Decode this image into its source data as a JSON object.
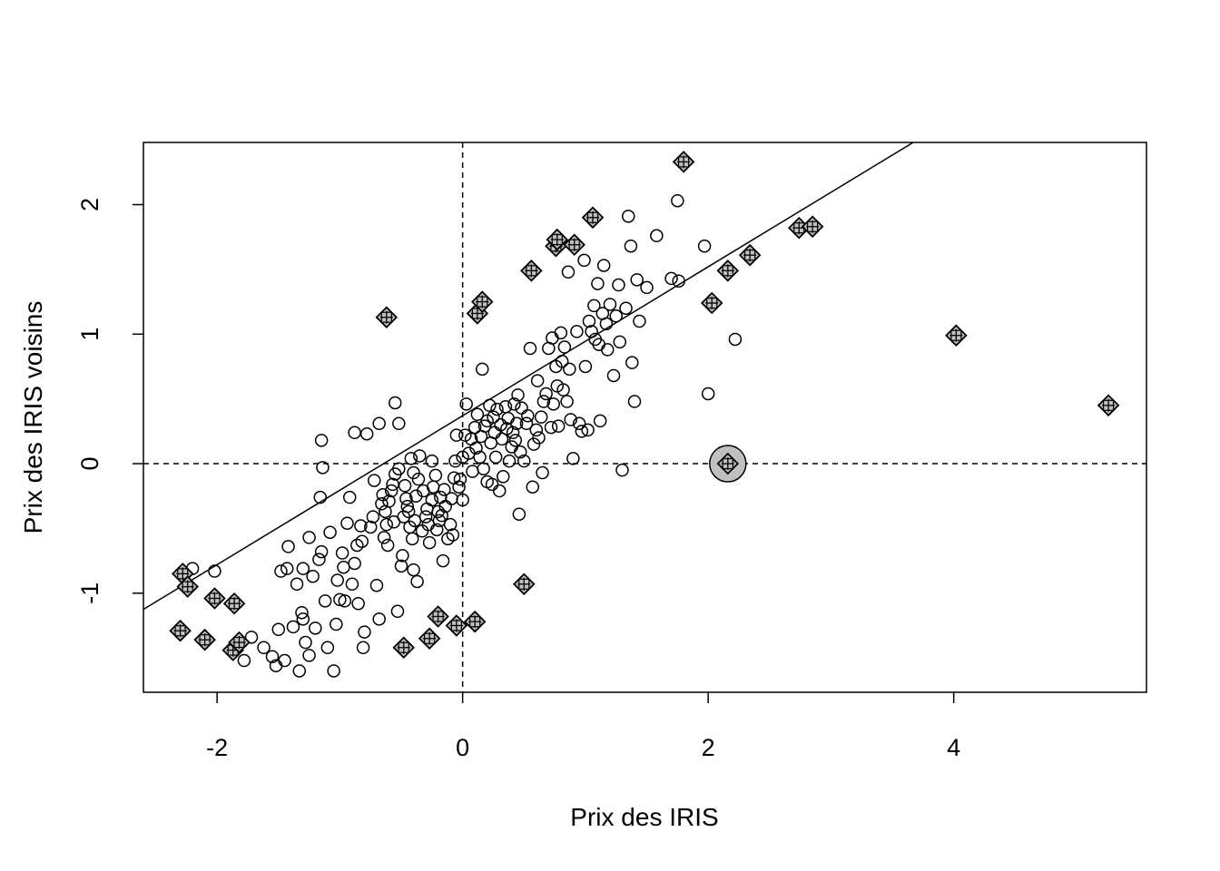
{
  "chart_data": {
    "type": "scatter",
    "title": "",
    "xlabel": "Prix des IRIS",
    "ylabel": "Prix des IRIS voisins",
    "xlim": [
      -2.6,
      5.57
    ],
    "ylim": [
      -1.765,
      2.48
    ],
    "xticks": [
      -2,
      0,
      2,
      4
    ],
    "yticks": [
      -1,
      0,
      1,
      2
    ],
    "xtick_labels": [
      "-2",
      "0",
      "2",
      "4"
    ],
    "ytick_labels": [
      "-1",
      "0",
      "1",
      "2"
    ],
    "grid": false,
    "legend": "none",
    "reference_lines": [
      {
        "type": "vline",
        "x": 0,
        "style": "dashed"
      },
      {
        "type": "hline",
        "y": 0,
        "style": "dashed"
      },
      {
        "type": "regression",
        "intercept": 0.37,
        "slope": 0.575,
        "style": "solid"
      }
    ],
    "colors": {
      "influential_fill": "#c0c0c0",
      "marker_stroke": "#000000"
    },
    "series": [
      {
        "marker": "open-circle",
        "points": [
          [
            -2.2,
            -0.81
          ],
          [
            -2.02,
            -0.83
          ],
          [
            -1.78,
            -1.52
          ],
          [
            -1.72,
            -1.34
          ],
          [
            -1.62,
            -1.42
          ],
          [
            -1.55,
            -1.49
          ],
          [
            -1.52,
            -1.56
          ],
          [
            -1.5,
            -1.28
          ],
          [
            -1.48,
            -0.83
          ],
          [
            -1.45,
            -1.52
          ],
          [
            -1.43,
            -0.81
          ],
          [
            -1.42,
            -0.64
          ],
          [
            -1.38,
            -1.26
          ],
          [
            -1.35,
            -0.93
          ],
          [
            -1.33,
            -1.6
          ],
          [
            -1.31,
            -1.15
          ],
          [
            -1.3,
            -0.81
          ],
          [
            -1.28,
            -1.38
          ],
          [
            -1.25,
            -1.48
          ],
          [
            -1.3,
            -1.2
          ],
          [
            -1.25,
            -0.57
          ],
          [
            -1.22,
            -0.87
          ],
          [
            -1.2,
            -1.27
          ],
          [
            -1.17,
            -0.74
          ],
          [
            -1.12,
            -1.06
          ],
          [
            -1.15,
            0.18
          ],
          [
            -1.14,
            -0.03
          ],
          [
            -1.16,
            -0.26
          ],
          [
            -1.15,
            -0.68
          ],
          [
            -1.1,
            -1.42
          ],
          [
            -1.08,
            -0.53
          ],
          [
            -1.05,
            -1.6
          ],
          [
            -1.03,
            -1.24
          ],
          [
            -1.0,
            -1.05
          ],
          [
            -1.02,
            -0.9
          ],
          [
            -0.98,
            -0.69
          ],
          [
            -0.97,
            -0.8
          ],
          [
            -0.96,
            -1.06
          ],
          [
            -0.94,
            -0.46
          ],
          [
            -0.92,
            -0.26
          ],
          [
            -0.9,
            -0.93
          ],
          [
            -0.88,
            -0.77
          ],
          [
            -0.86,
            -0.63
          ],
          [
            -0.85,
            -1.08
          ],
          [
            -0.88,
            0.24
          ],
          [
            -0.83,
            -0.48
          ],
          [
            -0.82,
            -0.6
          ],
          [
            -0.81,
            -1.42
          ],
          [
            -0.8,
            -1.3
          ],
          [
            -0.78,
            0.23
          ],
          [
            -0.75,
            -0.49
          ],
          [
            -0.73,
            -0.41
          ],
          [
            -0.72,
            -0.13
          ],
          [
            -0.7,
            -0.94
          ],
          [
            -0.68,
            -1.2
          ],
          [
            -0.68,
            0.31
          ],
          [
            -0.66,
            -0.31
          ],
          [
            -0.65,
            -0.24
          ],
          [
            -0.64,
            -0.57
          ],
          [
            -0.63,
            -0.37
          ],
          [
            -0.62,
            -0.47
          ],
          [
            -0.61,
            -0.63
          ],
          [
            -0.6,
            -0.29
          ],
          [
            -0.58,
            -0.21
          ],
          [
            -0.57,
            -0.16
          ],
          [
            -0.56,
            -0.45
          ],
          [
            -0.55,
            -0.08
          ],
          [
            -0.55,
            0.47
          ],
          [
            -0.53,
            -1.14
          ],
          [
            -0.52,
            0.31
          ],
          [
            -0.52,
            -0.04
          ],
          [
            -0.5,
            -0.79
          ],
          [
            -0.49,
            -0.71
          ],
          [
            -0.48,
            -0.41
          ],
          [
            -0.47,
            -0.17
          ],
          [
            -0.46,
            -0.27
          ],
          [
            -0.45,
            -0.33
          ],
          [
            -0.44,
            -0.37
          ],
          [
            -0.43,
            -0.49
          ],
          [
            -0.42,
            0.04
          ],
          [
            -0.41,
            -0.58
          ],
          [
            -0.4,
            -0.82
          ],
          [
            -0.4,
            -0.07
          ],
          [
            -0.39,
            -0.44
          ],
          [
            -0.38,
            -0.25
          ],
          [
            -0.37,
            -0.91
          ],
          [
            -0.36,
            -0.12
          ],
          [
            -0.35,
            0.06
          ],
          [
            -0.33,
            -0.52
          ],
          [
            -0.32,
            -0.21
          ],
          [
            -0.3,
            -0.41
          ],
          [
            -0.29,
            -0.35
          ],
          [
            -0.28,
            -0.47
          ],
          [
            -0.27,
            -0.61
          ],
          [
            -0.25,
            -0.28
          ],
          [
            -0.25,
            0.02
          ],
          [
            -0.24,
            -0.18
          ],
          [
            -0.22,
            -0.09
          ],
          [
            -0.21,
            -0.51
          ],
          [
            -0.2,
            -0.37
          ],
          [
            -0.19,
            -0.44
          ],
          [
            -0.18,
            -0.26
          ],
          [
            -0.17,
            -0.4
          ],
          [
            -0.16,
            -0.75
          ],
          [
            -0.15,
            -0.2
          ],
          [
            -0.14,
            -0.33
          ],
          [
            -0.12,
            -0.58
          ],
          [
            -0.1,
            -0.47
          ],
          [
            -0.09,
            -0.27
          ],
          [
            -0.08,
            -0.55
          ],
          [
            -0.07,
            -0.11
          ],
          [
            -0.06,
            0.02
          ],
          [
            -0.05,
            0.22
          ],
          [
            -0.03,
            -0.18
          ],
          [
            -0.02,
            -0.12
          ],
          [
            0.0,
            -0.28
          ],
          [
            0.0,
            0.05
          ],
          [
            0.02,
            0.22
          ],
          [
            0.03,
            0.46
          ],
          [
            0.05,
            0.08
          ],
          [
            0.07,
            0.19
          ],
          [
            0.08,
            -0.06
          ],
          [
            0.1,
            0.28
          ],
          [
            0.11,
            0.12
          ],
          [
            0.12,
            0.38
          ],
          [
            0.14,
            0.05
          ],
          [
            0.15,
            0.21
          ],
          [
            0.16,
            0.73
          ],
          [
            0.17,
            -0.04
          ],
          [
            0.18,
            0.29
          ],
          [
            0.2,
            0.33
          ],
          [
            0.2,
            -0.14
          ],
          [
            0.22,
            0.45
          ],
          [
            0.23,
            0.16
          ],
          [
            0.24,
            -0.16
          ],
          [
            0.25,
            0.36
          ],
          [
            0.26,
            0.24
          ],
          [
            0.27,
            0.05
          ],
          [
            0.28,
            0.42
          ],
          [
            0.3,
            -0.21
          ],
          [
            0.31,
            0.3
          ],
          [
            0.32,
            0.19
          ],
          [
            0.33,
            -0.1
          ],
          [
            0.35,
            0.44
          ],
          [
            0.36,
            0.27
          ],
          [
            0.37,
            0.35
          ],
          [
            0.38,
            0.02
          ],
          [
            0.4,
            0.13
          ],
          [
            0.41,
            0.24
          ],
          [
            0.42,
            0.46
          ],
          [
            0.43,
            0.18
          ],
          [
            0.44,
            0.31
          ],
          [
            0.45,
            0.53
          ],
          [
            0.46,
            -0.39
          ],
          [
            0.47,
            0.09
          ],
          [
            0.48,
            0.43
          ],
          [
            0.5,
            0.02
          ],
          [
            0.52,
            0.31
          ],
          [
            0.53,
            0.37
          ],
          [
            0.55,
            0.89
          ],
          [
            0.57,
            -0.18
          ],
          [
            0.58,
            0.15
          ],
          [
            0.6,
            0.26
          ],
          [
            0.61,
            0.64
          ],
          [
            0.62,
            0.2
          ],
          [
            0.64,
            0.36
          ],
          [
            0.65,
            -0.07
          ],
          [
            0.66,
            0.48
          ],
          [
            0.68,
            0.54
          ],
          [
            0.7,
            0.89
          ],
          [
            0.72,
            0.28
          ],
          [
            0.73,
            0.97
          ],
          [
            0.74,
            0.46
          ],
          [
            0.76,
            0.75
          ],
          [
            0.77,
            0.6
          ],
          [
            0.78,
            0.29
          ],
          [
            0.8,
            1.01
          ],
          [
            0.81,
            0.79
          ],
          [
            0.82,
            0.57
          ],
          [
            0.83,
            0.9
          ],
          [
            0.85,
            0.48
          ],
          [
            0.86,
            1.48
          ],
          [
            0.87,
            0.73
          ],
          [
            0.88,
            0.34
          ],
          [
            0.9,
            0.04
          ],
          [
            0.93,
            1.02
          ],
          [
            0.95,
            0.31
          ],
          [
            0.97,
            0.25
          ],
          [
            0.99,
            1.57
          ],
          [
            1.0,
            0.75
          ],
          [
            1.02,
            0.26
          ],
          [
            1.03,
            1.1
          ],
          [
            1.05,
            1.02
          ],
          [
            1.07,
            1.22
          ],
          [
            1.08,
            0.96
          ],
          [
            1.1,
            1.39
          ],
          [
            1.11,
            0.92
          ],
          [
            1.12,
            0.33
          ],
          [
            1.14,
            1.16
          ],
          [
            1.15,
            1.53
          ],
          [
            1.17,
            1.08
          ],
          [
            1.18,
            0.88
          ],
          [
            1.2,
            1.23
          ],
          [
            1.23,
            0.68
          ],
          [
            1.25,
            1.14
          ],
          [
            1.27,
            1.38
          ],
          [
            1.28,
            0.94
          ],
          [
            1.3,
            -0.05
          ],
          [
            1.33,
            1.2
          ],
          [
            1.35,
            1.91
          ],
          [
            1.37,
            1.68
          ],
          [
            1.38,
            0.78
          ],
          [
            1.4,
            0.48
          ],
          [
            1.42,
            1.42
          ],
          [
            1.44,
            1.1
          ],
          [
            1.5,
            1.36
          ],
          [
            1.58,
            1.76
          ],
          [
            1.7,
            1.43
          ],
          [
            1.75,
            2.03
          ],
          [
            1.76,
            1.41
          ],
          [
            1.97,
            1.68
          ],
          [
            2.0,
            0.54
          ],
          [
            2.22,
            0.96
          ]
        ]
      },
      {
        "marker": "diamond-plus",
        "points": [
          [
            -2.3,
            -1.29
          ],
          [
            -2.28,
            -0.85
          ],
          [
            -2.24,
            -0.95
          ],
          [
            -2.1,
            -1.36
          ],
          [
            -2.02,
            -1.04
          ],
          [
            -1.86,
            -1.08
          ],
          [
            -1.87,
            -1.44
          ],
          [
            -1.82,
            -1.38
          ],
          [
            -0.62,
            1.13
          ],
          [
            -0.48,
            -1.42
          ],
          [
            -0.27,
            -1.35
          ],
          [
            -0.2,
            -1.18
          ],
          [
            -0.05,
            -1.25
          ],
          [
            0.1,
            -1.22
          ],
          [
            0.12,
            1.16
          ],
          [
            0.16,
            1.25
          ],
          [
            0.5,
            -0.93
          ],
          [
            0.56,
            1.49
          ],
          [
            0.76,
            1.68
          ],
          [
            0.77,
            1.73
          ],
          [
            0.91,
            1.69
          ],
          [
            1.06,
            1.9
          ],
          [
            1.8,
            2.33
          ],
          [
            2.03,
            1.24
          ],
          [
            2.16,
            1.49
          ],
          [
            2.34,
            1.61
          ],
          [
            2.74,
            1.82
          ],
          [
            2.85,
            1.83
          ],
          [
            4.02,
            0.99
          ],
          [
            5.26,
            0.45
          ]
        ]
      },
      {
        "marker": "filled-circle-diamond-plus",
        "points": [
          [
            2.16,
            0.0
          ]
        ]
      }
    ]
  }
}
